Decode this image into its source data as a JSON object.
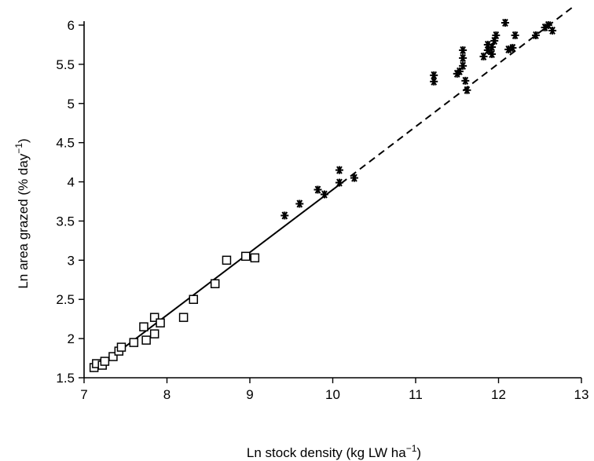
{
  "chart_data": {
    "type": "scatter",
    "xlabel": "Ln stock density (kg LW ha",
    "xlabel_sup": "−1",
    "xlabel_end": ")",
    "ylabel": "Ln area grazed (% day",
    "ylabel_sup": "−1",
    "ylabel_end": ")",
    "xlim": [
      7,
      13
    ],
    "ylim": [
      1.5,
      6.1
    ],
    "x_ticks": [
      7,
      8,
      9,
      10,
      11,
      12,
      13
    ],
    "x_tick_labels": [
      "7",
      "8",
      "9",
      "10",
      "11",
      "12",
      "13"
    ],
    "y_ticks": [
      1.5,
      2,
      2.5,
      3,
      3.5,
      4,
      4.5,
      5,
      5.5,
      6
    ],
    "y_tick_labels": [
      "1.5",
      "2",
      "2.5",
      "3",
      "3.5",
      "4",
      "4.5",
      "5",
      "5.5",
      "6"
    ],
    "grid": false,
    "legend": false,
    "series": [
      {
        "marker": "square",
        "points": [
          [
            7.12,
            1.63
          ],
          [
            7.15,
            1.68
          ],
          [
            7.22,
            1.66
          ],
          [
            7.25,
            1.71
          ],
          [
            7.35,
            1.77
          ],
          [
            7.42,
            1.84
          ],
          [
            7.45,
            1.89
          ],
          [
            7.6,
            1.95
          ],
          [
            7.72,
            2.15
          ],
          [
            7.75,
            1.98
          ],
          [
            7.85,
            2.06
          ],
          [
            7.85,
            2.27
          ],
          [
            7.92,
            2.2
          ],
          [
            8.2,
            2.27
          ],
          [
            8.32,
            2.5
          ],
          [
            8.58,
            2.7
          ],
          [
            8.72,
            3.0
          ],
          [
            8.95,
            3.05
          ],
          [
            9.06,
            3.03
          ]
        ]
      },
      {
        "marker": "asterisk",
        "points": [
          [
            9.42,
            3.57
          ],
          [
            9.6,
            3.72
          ],
          [
            9.82,
            3.9
          ],
          [
            9.9,
            3.84
          ],
          [
            10.08,
            3.99
          ],
          [
            10.08,
            4.15
          ],
          [
            10.26,
            4.05
          ],
          [
            11.22,
            5.28
          ],
          [
            11.22,
            5.36
          ],
          [
            11.5,
            5.38
          ],
          [
            11.53,
            5.41
          ],
          [
            11.57,
            5.48
          ],
          [
            11.57,
            5.58
          ],
          [
            11.57,
            5.68
          ],
          [
            11.6,
            5.29
          ],
          [
            11.62,
            5.17
          ],
          [
            11.82,
            5.6
          ],
          [
            11.87,
            5.68
          ],
          [
            11.87,
            5.75
          ],
          [
            11.92,
            5.63
          ],
          [
            11.92,
            5.72
          ],
          [
            11.95,
            5.8
          ],
          [
            11.97,
            5.87
          ],
          [
            12.08,
            6.03
          ],
          [
            12.12,
            5.69
          ],
          [
            12.17,
            5.71
          ],
          [
            12.2,
            5.87
          ],
          [
            12.45,
            5.87
          ],
          [
            12.56,
            5.97
          ],
          [
            12.6,
            6.0
          ],
          [
            12.65,
            5.93
          ]
        ]
      }
    ],
    "lines": [
      {
        "style": "solid",
        "x": [
          7.1,
          10.1
        ],
        "y": [
          1.58,
          3.98
        ]
      },
      {
        "style": "dashed",
        "x": [
          10.1,
          12.92
        ],
        "y": [
          3.98,
          6.25
        ]
      }
    ]
  }
}
